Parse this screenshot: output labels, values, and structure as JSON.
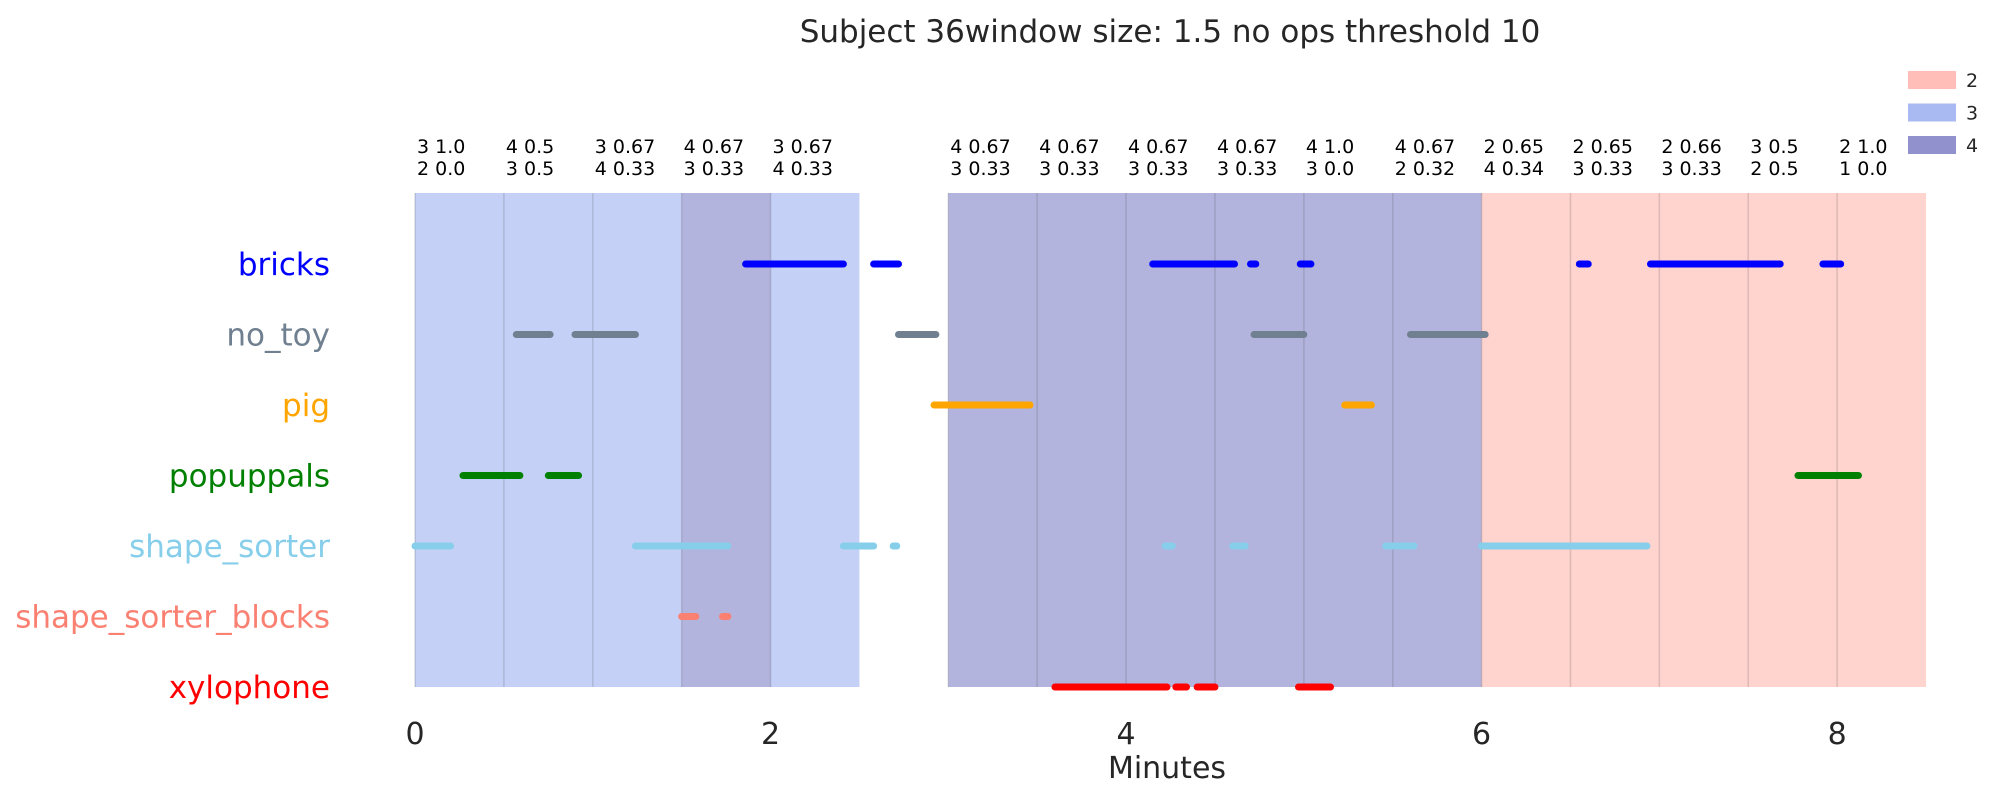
{
  "chart_data": {
    "type": "timeline",
    "title": "Subject 36window size: 1.5 no ops threshold 10",
    "xlabel": "Minutes",
    "xlim": [
      0,
      8.5
    ],
    "xticks": [
      0,
      2,
      4,
      6,
      8
    ],
    "categories": [
      "bricks",
      "no_toy",
      "pig",
      "popuppals",
      "shape_sorter",
      "shape_sorter_blocks",
      "xylophone"
    ],
    "category_colors": {
      "bricks": "#0000ff",
      "no_toy": "#708090",
      "pig": "#ffa500",
      "popuppals": "#008000",
      "shape_sorter": "#87ceeb",
      "shape_sorter_blocks": "#fa8072",
      "xylophone": "#ff0000"
    },
    "legend": {
      "placement": "top-right",
      "entries": [
        {
          "label": "2",
          "color": "#ffb3aa"
        },
        {
          "label": "3",
          "color": "#9aaef0"
        },
        {
          "label": "4",
          "color": "#7c7ec4"
        }
      ]
    },
    "state_colors": {
      "2": "#ffb3aa",
      "3": "#9aaef0",
      "4": "#7c7ec4"
    },
    "windows": [
      {
        "start": 0.0,
        "end": 0.5,
        "state": "3",
        "line1": "3 1.0",
        "line2": "2 0.0"
      },
      {
        "start": 0.5,
        "end": 1.0,
        "state": "3",
        "line1": "4 0.5",
        "line2": "3 0.5"
      },
      {
        "start": 1.0,
        "end": 1.5,
        "state": "3",
        "line1": "3 0.67",
        "line2": "4 0.33"
      },
      {
        "start": 1.5,
        "end": 2.0,
        "state": "4",
        "line1": "4 0.67",
        "line2": "3 0.33"
      },
      {
        "start": 2.0,
        "end": 2.5,
        "state": "3",
        "line1": "3 0.67",
        "line2": "4 0.33"
      },
      {
        "start": 3.0,
        "end": 3.5,
        "state": "4",
        "line1": "4 0.67",
        "line2": "3 0.33"
      },
      {
        "start": 3.5,
        "end": 4.0,
        "state": "4",
        "line1": "4 0.67",
        "line2": "3 0.33"
      },
      {
        "start": 4.0,
        "end": 4.5,
        "state": "4",
        "line1": "4 0.67",
        "line2": "3 0.33"
      },
      {
        "start": 4.5,
        "end": 5.0,
        "state": "4",
        "line1": "4 0.67",
        "line2": "3 0.33"
      },
      {
        "start": 5.0,
        "end": 5.5,
        "state": "4",
        "line1": "4 1.0",
        "line2": "3 0.0"
      },
      {
        "start": 5.5,
        "end": 6.0,
        "state": "4",
        "line1": "4 0.67",
        "line2": "2 0.32"
      },
      {
        "start": 6.0,
        "end": 6.5,
        "state": "2",
        "line1": "2 0.65",
        "line2": "4 0.34"
      },
      {
        "start": 6.5,
        "end": 7.0,
        "state": "2",
        "line1": "2 0.65",
        "line2": "3 0.33"
      },
      {
        "start": 7.0,
        "end": 7.5,
        "state": "2",
        "line1": "2 0.66",
        "line2": "3 0.33"
      },
      {
        "start": 7.5,
        "end": 8.0,
        "state": "2",
        "line1": "3 0.5",
        "line2": "2 0.5"
      },
      {
        "start": 8.0,
        "end": 8.5,
        "state": "2",
        "line1": "2 1.0",
        "line2": "1 0.0"
      }
    ],
    "segments": {
      "bricks": [
        [
          1.86,
          2.41
        ],
        [
          2.58,
          2.72
        ],
        [
          4.15,
          4.61
        ],
        [
          4.7,
          4.73
        ],
        [
          4.98,
          5.04
        ],
        [
          6.55,
          6.6
        ],
        [
          6.95,
          7.68
        ],
        [
          7.92,
          8.02
        ]
      ],
      "no_toy": [
        [
          0.57,
          0.76
        ],
        [
          0.9,
          1.24
        ],
        [
          2.72,
          2.93
        ],
        [
          4.72,
          5.0
        ],
        [
          5.6,
          6.02
        ]
      ],
      "pig": [
        [
          2.92,
          3.46
        ],
        [
          5.23,
          5.38
        ]
      ],
      "popuppals": [
        [
          0.27,
          0.59
        ],
        [
          0.75,
          0.92
        ],
        [
          7.78,
          8.12
        ]
      ],
      "shape_sorter": [
        [
          0.0,
          0.2
        ],
        [
          1.24,
          1.76
        ],
        [
          2.41,
          2.58
        ],
        [
          2.69,
          2.71
        ],
        [
          4.22,
          4.26
        ],
        [
          4.6,
          4.67
        ],
        [
          5.46,
          5.62
        ],
        [
          6.0,
          6.93
        ]
      ],
      "shape_sorter_blocks": [
        [
          1.5,
          1.58
        ],
        [
          1.73,
          1.76
        ]
      ],
      "xylophone": [
        [
          3.6,
          4.23
        ],
        [
          4.28,
          4.34
        ],
        [
          4.4,
          4.5
        ],
        [
          4.97,
          5.15
        ]
      ]
    }
  }
}
